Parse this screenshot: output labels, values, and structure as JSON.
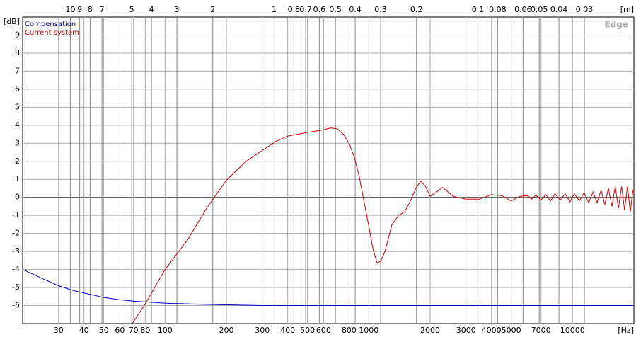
{
  "chart_data": {
    "type": "line",
    "log_x": true,
    "grid": true,
    "y_unit": "[dB]",
    "x_unit": "[Hz]",
    "x2_unit": "[m]",
    "watermark": "Edge",
    "xlim": [
      20,
      20000
    ],
    "ylim": [
      -7,
      10
    ],
    "xticks": [
      30,
      40,
      50,
      60,
      70,
      80,
      100,
      200,
      300,
      400,
      500,
      600,
      800,
      1000,
      2000,
      3000,
      4000,
      5000,
      7000,
      10000
    ],
    "yticks": [
      -6,
      -5,
      -4,
      -3,
      -2,
      -1,
      0,
      1,
      2,
      3,
      4,
      5,
      6,
      7,
      8,
      9
    ],
    "x2lim": [
      17.15,
      0.01715
    ],
    "x2ticks": [
      10,
      9,
      8,
      7,
      5,
      4,
      3,
      2,
      1,
      0.8,
      0.7,
      0.6,
      0.5,
      0.4,
      0.3,
      0.2,
      0.1,
      0.08,
      0.06,
      0.05,
      0.04,
      0.03
    ],
    "series": [
      {
        "name": "Compensation",
        "color": "#0000cc",
        "x": [
          20,
          25,
          30,
          35,
          40,
          50,
          60,
          70,
          80,
          100,
          150,
          200,
          300,
          1000,
          20000
        ],
        "values": [
          -4,
          -4.5,
          -4.9,
          -5.15,
          -5.3,
          -5.55,
          -5.68,
          -5.75,
          -5.8,
          -5.87,
          -5.93,
          -5.96,
          -6,
          -6,
          -6
        ]
      },
      {
        "name": "Current system",
        "color": "#cc0000",
        "x": [
          69,
          80,
          100,
          130,
          160,
          200,
          250,
          300,
          350,
          400,
          500,
          600,
          650,
          700,
          750,
          800,
          850,
          900,
          950,
          1000,
          1050,
          1100,
          1150,
          1200,
          1300,
          1400,
          1500,
          1600,
          1700,
          1800,
          1900,
          2000,
          2150,
          2300,
          2450,
          2600,
          3000,
          3500,
          4000,
          4500,
          5000,
          5500,
          6000,
          6300,
          6600,
          7000,
          7400,
          7800,
          8200,
          8700,
          9200,
          9700,
          10200,
          10800,
          11400,
          12000,
          12600,
          13200,
          13800,
          14400,
          15000,
          15600,
          16200,
          16800,
          17400,
          18000,
          18600,
          19200,
          19800
        ],
        "values": [
          -7,
          -5.9,
          -4,
          -2.3,
          -0.6,
          0.95,
          2,
          2.6,
          3.1,
          3.4,
          3.6,
          3.75,
          3.85,
          3.8,
          3.5,
          3.0,
          2.2,
          1.1,
          -0.3,
          -1.6,
          -2.9,
          -3.65,
          -3.5,
          -3.0,
          -1.5,
          -1.0,
          -0.8,
          -0.2,
          0.5,
          0.9,
          0.6,
          0.05,
          0.3,
          0.55,
          0.3,
          0.05,
          -0.1,
          -0.1,
          0.15,
          0.1,
          -0.2,
          0.05,
          0.1,
          -0.1,
          0.12,
          -0.15,
          0.15,
          -0.2,
          0.2,
          -0.15,
          0.2,
          -0.25,
          0.2,
          -0.2,
          0.25,
          -0.3,
          0.3,
          -0.3,
          0.4,
          -0.4,
          0.5,
          -0.5,
          0.6,
          -0.6,
          0.6,
          -0.7,
          0.6,
          -0.8,
          0.4
        ]
      }
    ]
  }
}
